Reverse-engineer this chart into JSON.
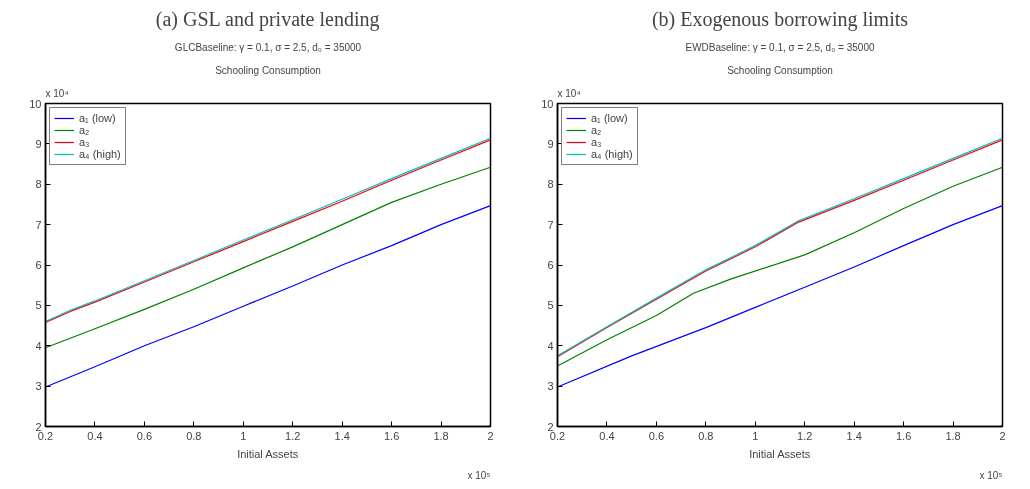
{
  "chart_data": [
    {
      "type": "line",
      "title": "(a) GSL and private lending",
      "subtitle": "GLCBaseline: γ = 0.1, σ = 2.5, d₀ = 35000",
      "annotations": [
        "Schooling Consumption",
        "x 10⁴",
        "x 10⁵"
      ],
      "xlabel": "Initial Assets",
      "xlim": [
        0.2,
        2
      ],
      "xticks": [
        0.2,
        0.4,
        0.6,
        0.8,
        1,
        1.2,
        1.4,
        1.6,
        1.8,
        2
      ],
      "ylim": [
        2,
        10
      ],
      "yticks": [
        2,
        3,
        4,
        5,
        6,
        7,
        8,
        9,
        10
      ],
      "grid": false,
      "legend": "top left",
      "line_style": "solid",
      "marker": "none",
      "series": [
        {
          "name": "a₁ (low)",
          "color": "#0000ff",
          "x": [
            0.2,
            0.4,
            0.6,
            0.8,
            1.0,
            1.2,
            1.4,
            1.6,
            1.8,
            2.0
          ],
          "values": [
            2.98,
            3.48,
            4.0,
            4.47,
            4.98,
            5.48,
            6.0,
            6.48,
            7.0,
            7.47
          ]
        },
        {
          "name": "a₂",
          "color": "#008000",
          "x": [
            0.2,
            0.4,
            0.6,
            0.8,
            1.0,
            1.2,
            1.4,
            1.6,
            1.8,
            2.0
          ],
          "values": [
            3.95,
            4.42,
            4.9,
            5.4,
            5.93,
            6.45,
            7.0,
            7.55,
            8.0,
            8.42
          ]
        },
        {
          "name": "a₃",
          "color": "#ff0000",
          "x": [
            0.2,
            0.3,
            0.4,
            0.6,
            0.8,
            1.0,
            1.2,
            1.4,
            1.6,
            1.8,
            2.0
          ],
          "values": [
            4.58,
            4.85,
            5.08,
            5.58,
            6.08,
            6.58,
            7.08,
            7.58,
            8.1,
            8.6,
            9.1
          ]
        },
        {
          "name": "a₄ (high)",
          "color": "#00bfbf",
          "x": [
            0.2,
            0.3,
            0.4,
            0.6,
            0.8,
            1.0,
            1.2,
            1.4,
            1.6,
            1.8,
            2.0
          ],
          "values": [
            4.6,
            4.88,
            5.11,
            5.61,
            6.11,
            6.62,
            7.12,
            7.63,
            8.14,
            8.64,
            9.14
          ]
        }
      ]
    },
    {
      "type": "line",
      "title": "(b) Exogenous borrowing limits",
      "subtitle": "EWDBaseline: γ = 0.1, σ = 2.5, d₀ = 35000",
      "annotations": [
        "Schooling Consumption",
        "x 10⁴",
        "x 10⁵"
      ],
      "xlabel": "Initial Assets",
      "xlim": [
        0.2,
        2
      ],
      "xticks": [
        0.2,
        0.4,
        0.6,
        0.8,
        1,
        1.2,
        1.4,
        1.6,
        1.8,
        2
      ],
      "ylim": [
        2,
        10
      ],
      "yticks": [
        2,
        3,
        4,
        5,
        6,
        7,
        8,
        9,
        10
      ],
      "grid": false,
      "legend": "top left",
      "line_style": "solid",
      "marker": "none",
      "series": [
        {
          "name": "a₁ (low)",
          "color": "#0000ff",
          "x": [
            0.2,
            0.5,
            0.8,
            1.0,
            1.2,
            1.4,
            1.6,
            1.8,
            2.0
          ],
          "values": [
            2.98,
            3.75,
            4.45,
            4.95,
            5.45,
            5.95,
            6.48,
            7.0,
            7.47
          ]
        },
        {
          "name": "a₂",
          "color": "#008000",
          "x": [
            0.2,
            0.4,
            0.6,
            0.75,
            0.9,
            1.2,
            1.4,
            1.6,
            1.8,
            2.0
          ],
          "values": [
            3.5,
            4.15,
            4.75,
            5.3,
            5.65,
            6.25,
            6.8,
            7.4,
            7.95,
            8.42
          ]
        },
        {
          "name": "a₃",
          "color": "#ff0000",
          "x": [
            0.2,
            0.4,
            0.6,
            0.8,
            1.0,
            1.17,
            1.4,
            1.6,
            1.8,
            2.0
          ],
          "values": [
            3.73,
            4.45,
            5.15,
            5.85,
            6.45,
            7.05,
            7.6,
            8.1,
            8.6,
            9.1
          ]
        },
        {
          "name": "a₄ (high)",
          "color": "#00bfbf",
          "x": [
            0.2,
            0.4,
            0.6,
            0.8,
            1.0,
            1.17,
            1.4,
            1.6,
            1.8,
            2.0
          ],
          "values": [
            3.75,
            4.47,
            5.18,
            5.88,
            6.48,
            7.08,
            7.64,
            8.14,
            8.64,
            9.14
          ]
        }
      ]
    }
  ]
}
